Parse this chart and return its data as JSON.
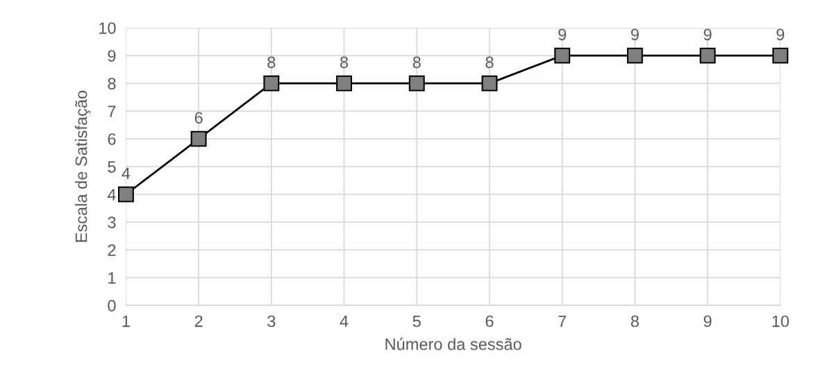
{
  "chart_data": {
    "type": "line",
    "xlabel": "Número da sessão",
    "ylabel": "Escala de Satisfação",
    "x": [
      1,
      2,
      3,
      4,
      5,
      6,
      7,
      8,
      9,
      10
    ],
    "series": [
      {
        "color": "#000000",
        "values": [
          4,
          6,
          8,
          8,
          8,
          8,
          9,
          9,
          9,
          9
        ]
      }
    ],
    "xlim": [
      1,
      10
    ],
    "xticks": [
      1,
      2,
      3,
      4,
      5,
      6,
      7,
      8,
      9,
      10
    ],
    "ylim": [
      0,
      10
    ],
    "yticks": [
      0,
      1,
      2,
      3,
      4,
      5,
      6,
      7,
      8,
      9,
      10
    ],
    "grid": true,
    "legend": false,
    "marker": "square",
    "line_style": "solid",
    "data_labels": true
  }
}
